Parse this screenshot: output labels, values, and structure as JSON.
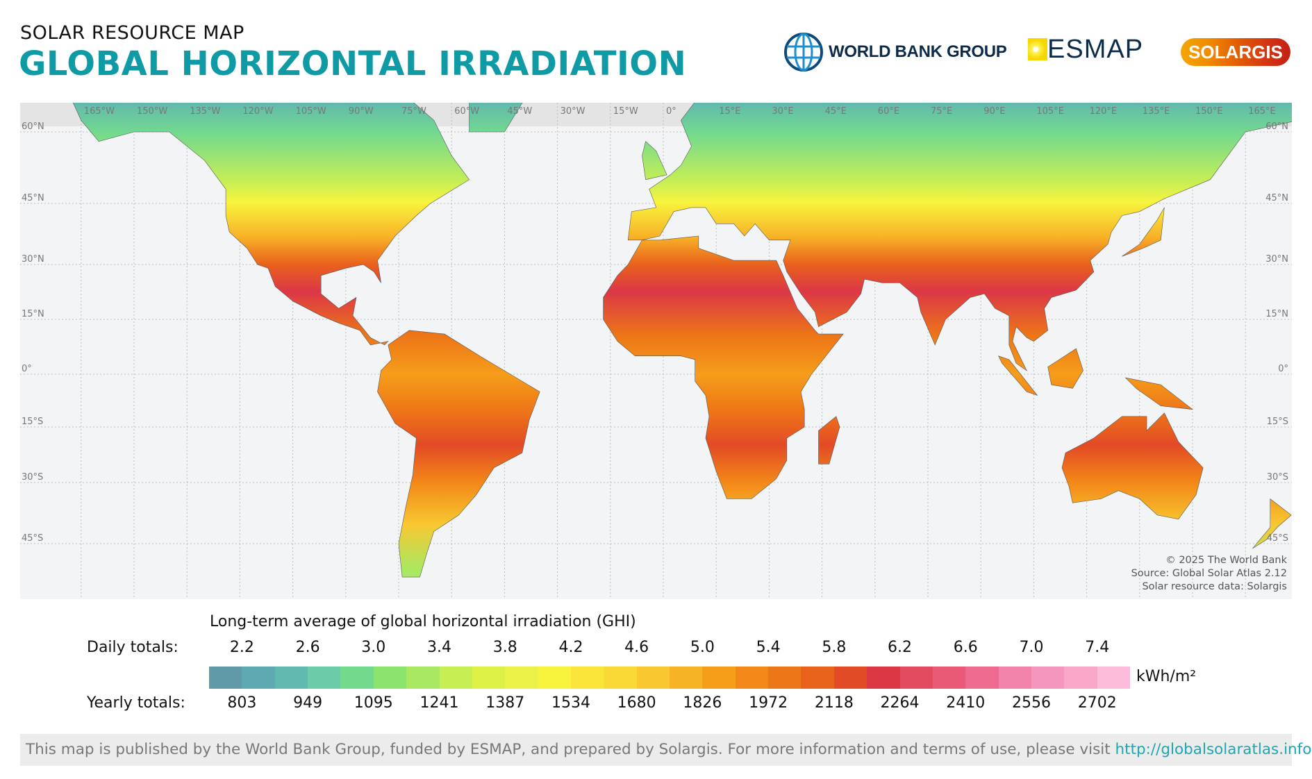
{
  "header": {
    "subtitle": "SOLAR RESOURCE MAP",
    "title": "GLOBAL HORIZONTAL IRRADIATION",
    "title_color": "#0e9ba6",
    "logos": {
      "world_bank": "WORLD BANK GROUP",
      "esmap": "ESMAP",
      "solargis": "SOLARGIS"
    }
  },
  "map": {
    "longitude_labels": [
      "165°W",
      "150°W",
      "135°W",
      "120°W",
      "105°W",
      "90°W",
      "75°W",
      "60°W",
      "45°W",
      "30°W",
      "15°W",
      "0°",
      "15°E",
      "30°E",
      "45°E",
      "60°E",
      "75°E",
      "90°E",
      "105°E",
      "120°E",
      "135°E",
      "150°E",
      "165°E"
    ],
    "latitude_labels": [
      "60°N",
      "45°N",
      "30°N",
      "15°N",
      "0°",
      "15°S",
      "30°S",
      "45°S"
    ],
    "credits": [
      "© 2025 The World Bank",
      "Source: Global Solar Atlas 2.12",
      "Solar resource data: Solargis"
    ]
  },
  "legend": {
    "title": "Long-term average of global horizontal irradiation (GHI)",
    "daily_label": "Daily totals:",
    "yearly_label": "Yearly totals:",
    "daily_values": [
      "2.2",
      "2.6",
      "3.0",
      "3.4",
      "3.8",
      "4.2",
      "4.6",
      "5.0",
      "5.4",
      "5.8",
      "6.2",
      "6.6",
      "7.0",
      "7.4"
    ],
    "yearly_values": [
      "803",
      "949",
      "1095",
      "1241",
      "1387",
      "1534",
      "1680",
      "1826",
      "1972",
      "2118",
      "2264",
      "2410",
      "2556",
      "2702"
    ],
    "unit": "kWh/m²",
    "colors": [
      "#5f9aa6",
      "#5eaab0",
      "#62b9af",
      "#6ccba9",
      "#72d98f",
      "#8ae46e",
      "#a9e860",
      "#c7ef54",
      "#dcf046",
      "#ebf146",
      "#f8f43e",
      "#fbe43a",
      "#fad936",
      "#f9c831",
      "#f8b226",
      "#f69d1a",
      "#f38818",
      "#ed7617",
      "#e9621b",
      "#e34a26",
      "#dc3747",
      "#e34b61",
      "#e95a78",
      "#ee6b8f",
      "#f283ab",
      "#f496bd",
      "#f9a7c9",
      "#fdbcd9"
    ]
  },
  "footer": {
    "text": "This map is published by the World Bank Group, funded by ESMAP, and prepared by Solargis. For more information and terms of use, please visit ",
    "link": "http://globalsolaratlas.info",
    "end": "."
  }
}
